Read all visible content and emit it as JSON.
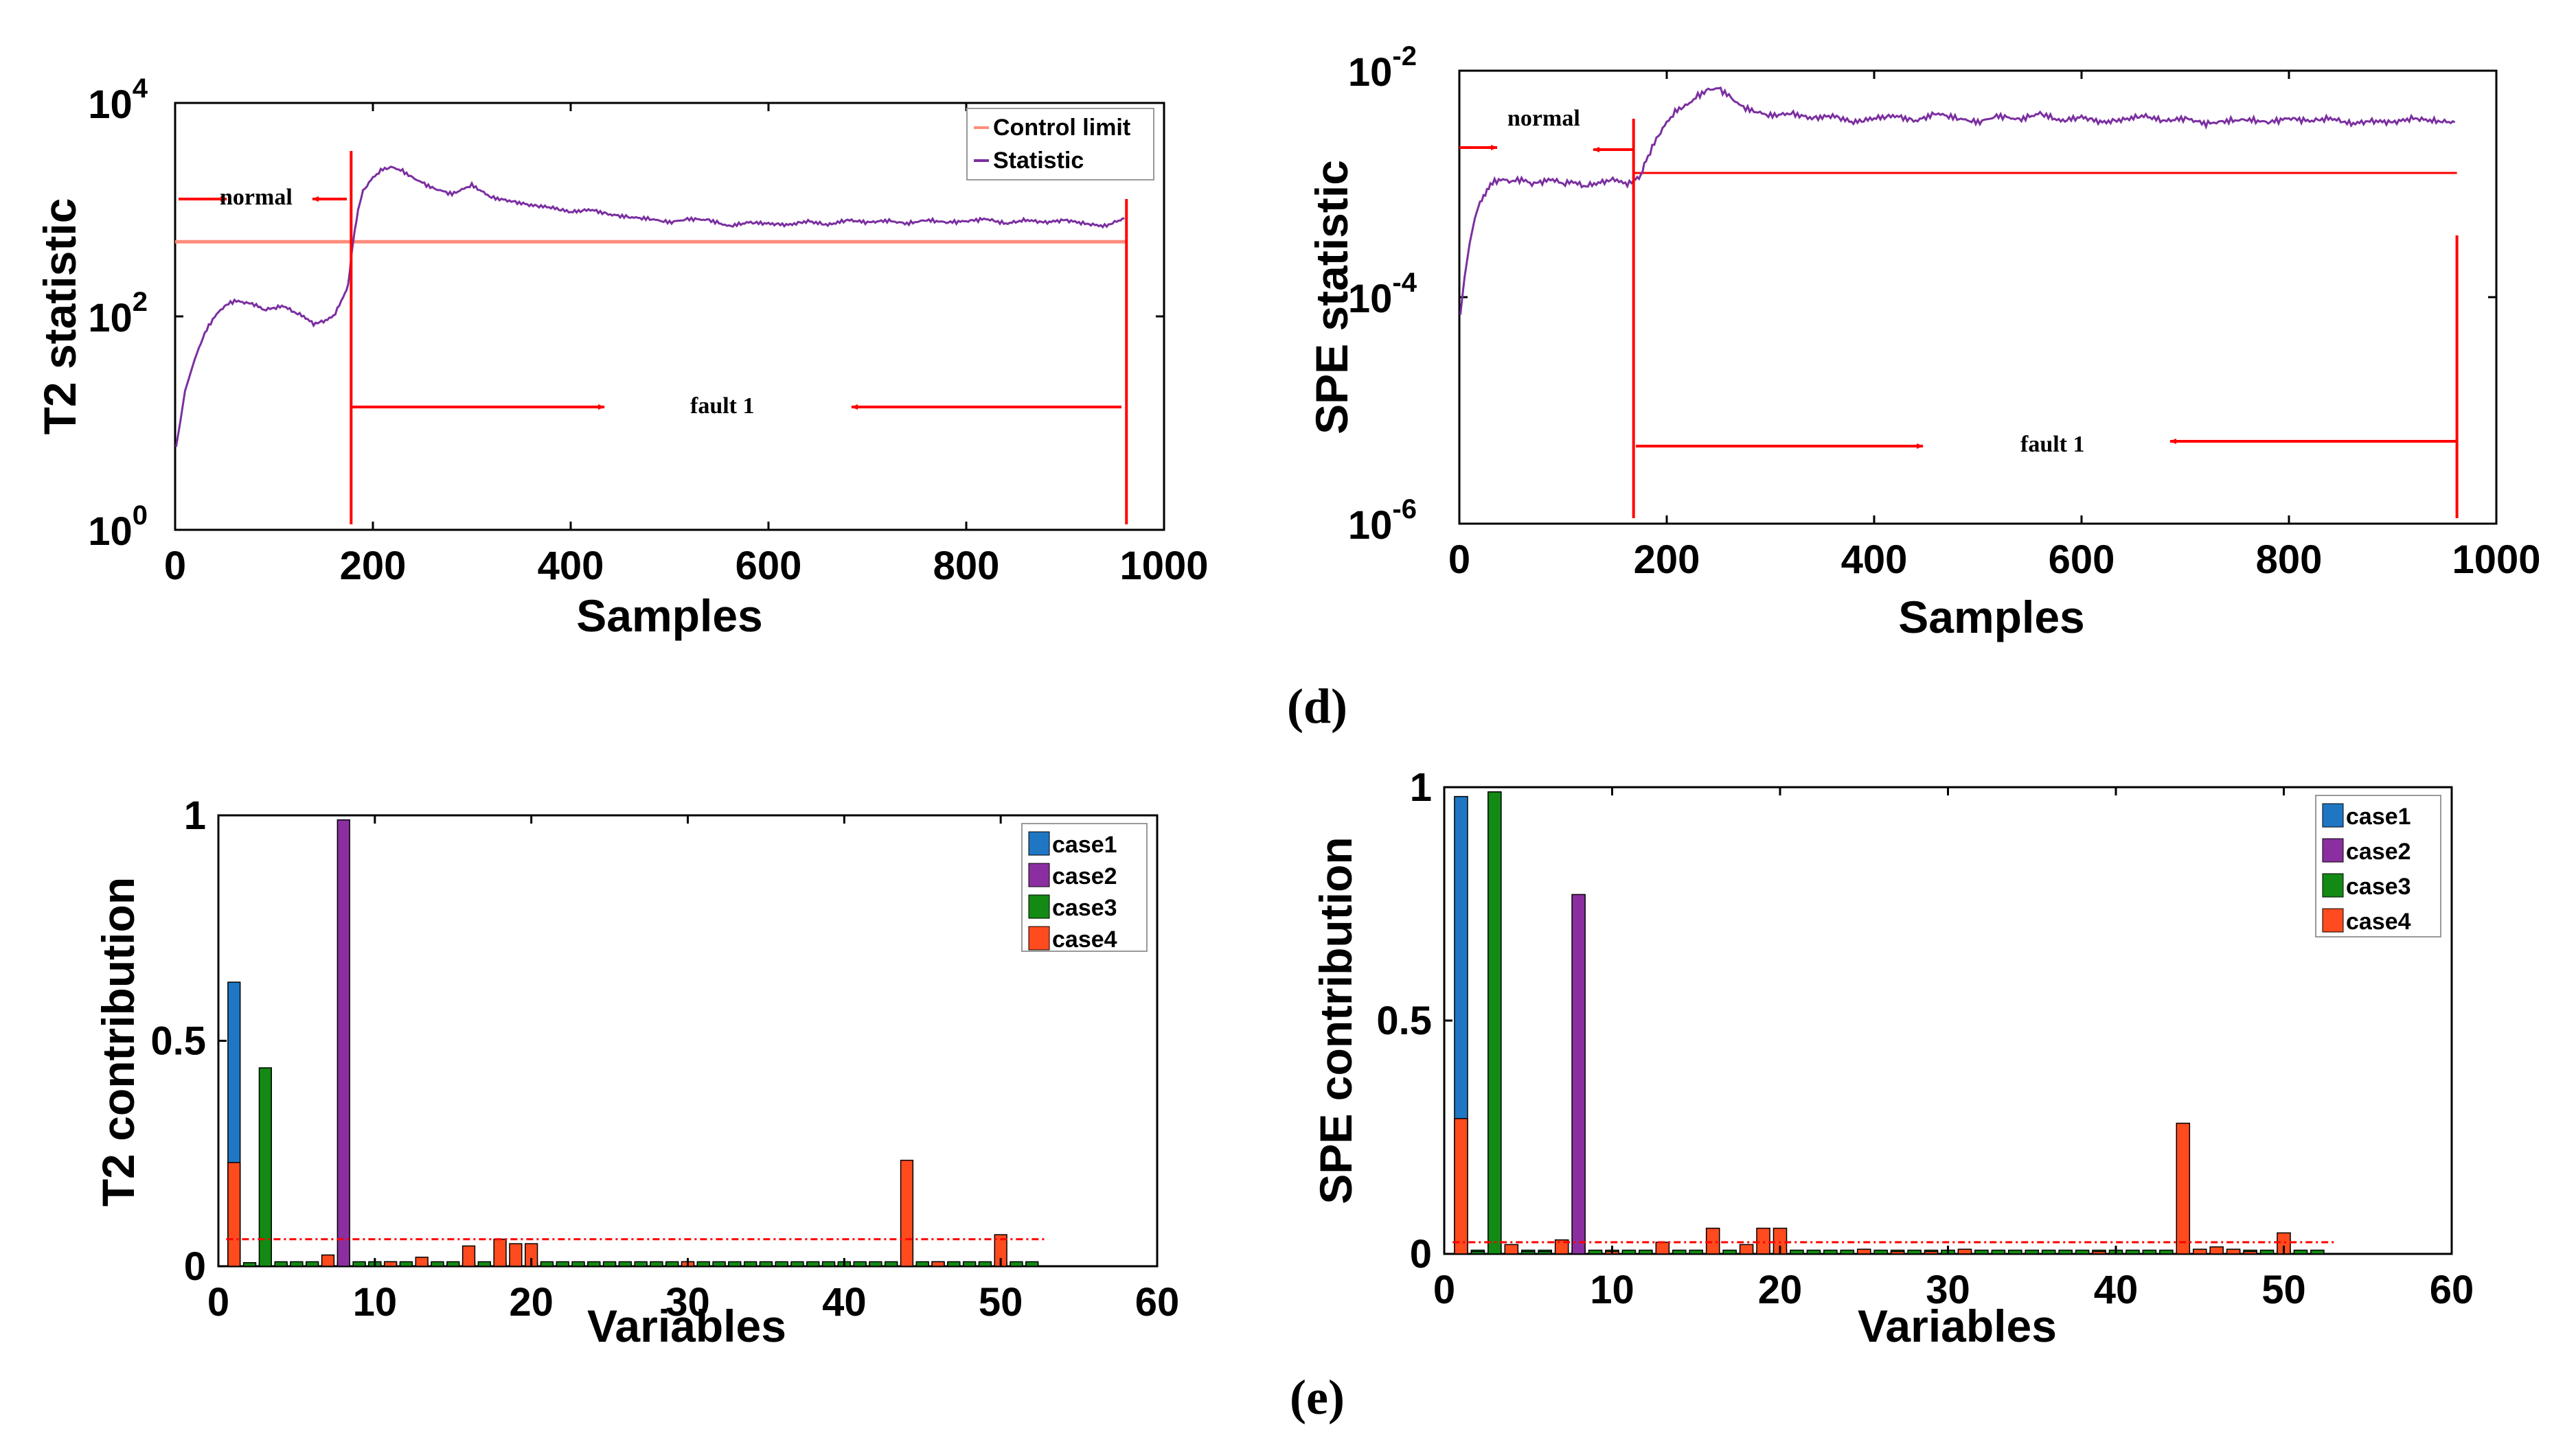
{
  "colors": {
    "control_limit_t2": "#ff8c7a",
    "control_limit": "#ff0000",
    "statistic": "#7b2fa0",
    "arrow": "#ff0000",
    "case1": "#1f77c4",
    "case2": "#8b2fa0",
    "case3": "#138a13",
    "case4": "#ff4b1e"
  },
  "captions": {
    "d": "(d)",
    "e": "(e)"
  },
  "chart_data": [
    {
      "id": "t2",
      "type": "line",
      "yscale": "log",
      "xlabel": "Samples",
      "ylabel": "T2 statistic",
      "xlim": [
        0,
        1000
      ],
      "ylim_exp": [
        0,
        4
      ],
      "xticks": [
        "0",
        "200",
        "400",
        "600",
        "800",
        "1000"
      ],
      "ytick_base": "10",
      "yticks_exp": [
        "0",
        "2",
        "4"
      ],
      "control_limit": 500,
      "fault_start": 178,
      "fault_end": 962,
      "normal_label": "normal",
      "fault_label": "fault 1",
      "legend": [
        "Control limit",
        "Statistic"
      ],
      "x": [
        1,
        5,
        10,
        20,
        30,
        40,
        50,
        60,
        70,
        80,
        90,
        100,
        110,
        120,
        130,
        140,
        150,
        160,
        170,
        175,
        180,
        185,
        190,
        200,
        210,
        220,
        230,
        240,
        260,
        280,
        300,
        320,
        340,
        360,
        380,
        400,
        420,
        440,
        460,
        480,
        500,
        520,
        540,
        560,
        580,
        600,
        620,
        640,
        660,
        680,
        700,
        720,
        740,
        760,
        780,
        800,
        820,
        840,
        860,
        880,
        900,
        920,
        940,
        960
      ],
      "y": [
        6,
        10,
        20,
        40,
        70,
        100,
        125,
        140,
        135,
        130,
        115,
        120,
        125,
        110,
        100,
        85,
        90,
        100,
        150,
        200,
        500,
        1000,
        1500,
        2000,
        2400,
        2500,
        2300,
        2000,
        1600,
        1400,
        1700,
        1300,
        1200,
        1100,
        1050,
        950,
        1000,
        900,
        850,
        820,
        760,
        820,
        800,
        700,
        760,
        740,
        720,
        780,
        720,
        800,
        760,
        790,
        740,
        800,
        760,
        780,
        820,
        740,
        800,
        760,
        800,
        740,
        700,
        830
      ]
    },
    {
      "id": "spe",
      "type": "line",
      "yscale": "log",
      "xlabel": "Samples",
      "ylabel": "SPE statistic",
      "xlim": [
        0,
        1000
      ],
      "ylim_exp": [
        -6,
        -2
      ],
      "xticks": [
        "0",
        "200",
        "400",
        "600",
        "800",
        "1000"
      ],
      "ytick_base": "10",
      "yticks_exp": [
        "-6",
        "-4",
        "-2"
      ],
      "control_limit": 0.00125,
      "fault_start": 168,
      "fault_end": 962,
      "normal_label": "normal",
      "fault_label": "fault 1",
      "x": [
        1,
        5,
        10,
        15,
        20,
        25,
        30,
        40,
        50,
        60,
        70,
        80,
        90,
        100,
        110,
        120,
        130,
        140,
        150,
        160,
        168,
        175,
        180,
        190,
        200,
        210,
        220,
        230,
        240,
        250,
        260,
        270,
        280,
        300,
        320,
        340,
        360,
        380,
        400,
        420,
        440,
        460,
        480,
        500,
        520,
        540,
        560,
        580,
        600,
        620,
        640,
        660,
        680,
        700,
        720,
        740,
        760,
        780,
        800,
        820,
        840,
        860,
        880,
        900,
        920,
        940,
        960
      ],
      "y": [
        7e-05,
        0.00015,
        0.0003,
        0.0005,
        0.0007,
        0.0008,
        0.001,
        0.0011,
        0.00105,
        0.0011,
        0.001,
        0.00105,
        0.0011,
        0.001,
        0.00105,
        0.00095,
        0.001,
        0.00105,
        0.0011,
        0.001,
        0.00105,
        0.0012,
        0.0016,
        0.0025,
        0.0035,
        0.0045,
        0.005,
        0.006,
        0.0068,
        0.007,
        0.006,
        0.005,
        0.0045,
        0.004,
        0.0042,
        0.0038,
        0.004,
        0.0035,
        0.0038,
        0.004,
        0.0036,
        0.0042,
        0.0038,
        0.0035,
        0.004,
        0.0037,
        0.0042,
        0.0036,
        0.0039,
        0.0035,
        0.0037,
        0.004,
        0.0036,
        0.0038,
        0.0034,
        0.0036,
        0.0037,
        0.0035,
        0.0038,
        0.0036,
        0.0038,
        0.0034,
        0.0036,
        0.0035,
        0.0038,
        0.0036,
        0.0035
      ]
    },
    {
      "id": "t2c",
      "type": "bar",
      "xlabel": "Variables",
      "ylabel": "T2 contribution",
      "xlim": [
        0,
        60
      ],
      "ylim": [
        0,
        1
      ],
      "xticks": [
        "0",
        "10",
        "20",
        "30",
        "40",
        "50",
        "60"
      ],
      "yticks": [
        "0",
        "0.5",
        "1"
      ],
      "threshold": 0.06,
      "legend": [
        "case1",
        "case2",
        "case3",
        "case4"
      ],
      "series": [
        {
          "name": "case1",
          "bars": [
            [
              1,
              0.63
            ]
          ]
        },
        {
          "name": "case2",
          "bars": [
            [
              8,
              0.99
            ]
          ]
        },
        {
          "name": "case3",
          "bars": [
            [
              3,
              0.44
            ],
            [
              4,
              0.01
            ],
            [
              5,
              0.01
            ],
            [
              6,
              0.01
            ],
            [
              9,
              0.01
            ],
            [
              10,
              0.01
            ],
            [
              11,
              0.01
            ],
            [
              12,
              0.01
            ],
            [
              14,
              0.01
            ],
            [
              15,
              0.01
            ],
            [
              16,
              0.01
            ],
            [
              17,
              0.01
            ],
            [
              20,
              0.01
            ],
            [
              21,
              0.01
            ],
            [
              22,
              0.01
            ],
            [
              23,
              0.01
            ],
            [
              24,
              0.01
            ],
            [
              25,
              0.01
            ],
            [
              26,
              0.01
            ],
            [
              27,
              0.01
            ],
            [
              28,
              0.01
            ],
            [
              29,
              0.01
            ],
            [
              30,
              0.01
            ],
            [
              31,
              0.01
            ],
            [
              32,
              0.01
            ],
            [
              33,
              0.01
            ],
            [
              34,
              0.01
            ],
            [
              35,
              0.01
            ],
            [
              36,
              0.01
            ],
            [
              37,
              0.01
            ],
            [
              38,
              0.01
            ],
            [
              39,
              0.01
            ],
            [
              40,
              0.01
            ],
            [
              41,
              0.01
            ],
            [
              42,
              0.01
            ],
            [
              43,
              0.01
            ],
            [
              45,
              0.01
            ],
            [
              46,
              0.01
            ],
            [
              47,
              0.01
            ],
            [
              48,
              0.01
            ],
            [
              49,
              0.01
            ],
            [
              51,
              0.01
            ],
            [
              52,
              0.01
            ]
          ]
        },
        {
          "name": "case4",
          "bars": [
            [
              1,
              0.23
            ],
            [
              7,
              0.025
            ],
            [
              13,
              0.02
            ],
            [
              16,
              0.045
            ],
            [
              18,
              0.06
            ],
            [
              19,
              0.05
            ],
            [
              20,
              0.05
            ],
            [
              44,
              0.235
            ],
            [
              50,
              0.07
            ],
            [
              11,
              0.01
            ],
            [
              30,
              0.01
            ],
            [
              46,
              0.01
            ]
          ]
        }
      ]
    },
    {
      "id": "spec",
      "type": "bar",
      "xlabel": "Variables",
      "ylabel": "SPE contribution",
      "xlim": [
        0,
        60
      ],
      "ylim": [
        0,
        1
      ],
      "xticks": [
        "0",
        "10",
        "20",
        "30",
        "40",
        "50",
        "60"
      ],
      "yticks": [
        "0",
        "0.5",
        "1"
      ],
      "threshold": 0.025,
      "legend": [
        "case1",
        "case2",
        "case3",
        "case4"
      ],
      "series": [
        {
          "name": "case1",
          "bars": [
            [
              1,
              0.98
            ]
          ]
        },
        {
          "name": "case2",
          "bars": [
            [
              8,
              0.77
            ]
          ]
        },
        {
          "name": "case3",
          "bars": [
            [
              3,
              0.99
            ],
            [
              2,
              0.005
            ],
            [
              5,
              0.005
            ],
            [
              6,
              0.005
            ]
          ]
        },
        {
          "name": "case4",
          "bars": [
            [
              1,
              0.29
            ],
            [
              4,
              0.02
            ],
            [
              7,
              0.03
            ],
            [
              10,
              0.005
            ],
            [
              13,
              0.025
            ],
            [
              16,
              0.055
            ],
            [
              18,
              0.02
            ],
            [
              19,
              0.055
            ],
            [
              20,
              0.055
            ],
            [
              25,
              0.01
            ],
            [
              27,
              0.005
            ],
            [
              29,
              0.005
            ],
            [
              31,
              0.01
            ],
            [
              39,
              0.005
            ],
            [
              44,
              0.28
            ],
            [
              45,
              0.01
            ],
            [
              46,
              0.015
            ],
            [
              47,
              0.01
            ],
            [
              48,
              0.005
            ],
            [
              50,
              0.045
            ]
          ]
        }
      ]
    }
  ]
}
